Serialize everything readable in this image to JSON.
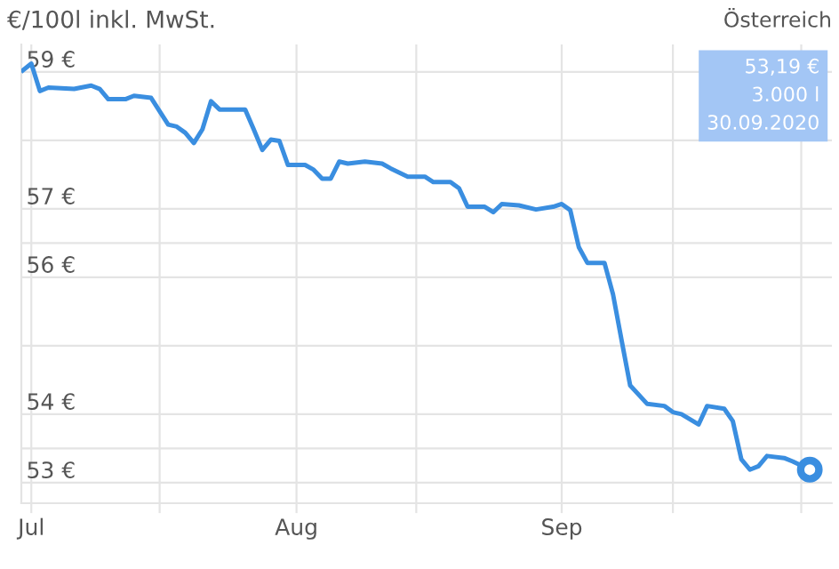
{
  "chart_data": {
    "type": "line",
    "title": "€/100l inkl. MwSt.",
    "subtitle": "Österreich",
    "annotations": [
      "53,19 €\n3.000 l\n30.09.2020"
    ],
    "x": [
      "2020-06-30",
      "2020-07-01",
      "2020-07-02",
      "2020-07-03",
      "2020-07-06",
      "2020-07-08",
      "2020-07-09",
      "2020-07-10",
      "2020-07-12",
      "2020-07-13",
      "2020-07-15",
      "2020-07-17",
      "2020-07-18",
      "2020-07-19",
      "2020-07-20",
      "2020-07-21",
      "2020-07-22",
      "2020-07-23",
      "2020-07-26",
      "2020-07-27",
      "2020-07-28",
      "2020-07-29",
      "2020-07-30",
      "2020-07-31",
      "2020-08-02",
      "2020-08-03",
      "2020-08-04",
      "2020-08-05",
      "2020-08-06",
      "2020-08-07",
      "2020-08-09",
      "2020-08-11",
      "2020-08-12",
      "2020-08-14",
      "2020-08-16",
      "2020-08-17",
      "2020-08-19",
      "2020-08-20",
      "2020-08-21",
      "2020-08-23",
      "2020-08-24",
      "2020-08-25",
      "2020-08-27",
      "2020-08-29",
      "2020-08-31",
      "2020-09-01",
      "2020-09-02",
      "2020-09-03",
      "2020-09-04",
      "2020-09-06",
      "2020-09-07",
      "2020-09-08",
      "2020-09-09",
      "2020-09-11",
      "2020-09-13",
      "2020-09-14",
      "2020-09-15",
      "2020-09-17",
      "2020-09-18",
      "2020-09-20",
      "2020-09-21",
      "2020-09-22",
      "2020-09-23",
      "2020-09-24",
      "2020-09-25",
      "2020-09-27",
      "2020-09-28",
      "2020-09-30"
    ],
    "series": [
      {
        "color": "#3a8ee0",
        "values": [
          59.02,
          59.12,
          58.72,
          58.77,
          58.75,
          58.8,
          58.75,
          58.6,
          58.6,
          58.65,
          58.62,
          58.23,
          58.2,
          58.11,
          57.96,
          58.16,
          58.57,
          58.45,
          58.45,
          58.16,
          57.86,
          58.01,
          57.99,
          57.64,
          57.64,
          57.57,
          57.44,
          57.44,
          57.69,
          57.66,
          57.69,
          57.66,
          57.59,
          57.47,
          57.47,
          57.39,
          57.39,
          57.3,
          57.03,
          57.03,
          56.95,
          57.07,
          57.05,
          56.99,
          57.03,
          57.07,
          56.98,
          56.44,
          56.21,
          56.21,
          55.75,
          55.08,
          54.42,
          54.15,
          54.12,
          54.03,
          54.0,
          53.85,
          54.12,
          54.08,
          53.9,
          53.34,
          53.19,
          53.24,
          53.39,
          53.36,
          53.31,
          53.19
        ]
      },
      {
        "type": "scatter",
        "color": "#3a8ee0",
        "marker": "circle",
        "x": [
          "2020-09-30"
        ],
        "values": [
          53.19
        ]
      }
    ],
    "xlim": [
      "2020-06-29T20:00",
      "2020-10-02T14:00"
    ],
    "xticks": [
      {
        "value": "2020-07-01",
        "label": "Jul"
      },
      {
        "value": "2020-07-16",
        "label": null
      },
      {
        "value": "2020-08-01",
        "label": "Aug"
      },
      {
        "value": "2020-08-15",
        "label": null
      },
      {
        "value": "2020-09-01",
        "label": "Sep"
      },
      {
        "value": "2020-09-14",
        "label": null
      },
      {
        "value": "2020-09-29",
        "label": null
      }
    ],
    "ylim": [
      52.7,
      59.4
    ],
    "yticks": [
      {
        "value": 53,
        "label": "53 €"
      },
      {
        "value": 53.5,
        "label": null
      },
      {
        "value": 54,
        "label": "54 €"
      },
      {
        "value": 55,
        "label": null
      },
      {
        "value": 56,
        "label": "56 €"
      },
      {
        "value": 56.5,
        "label": null
      },
      {
        "value": 57,
        "label": "57 €"
      },
      {
        "value": 58,
        "label": null
      },
      {
        "value": 59,
        "label": "59 €"
      }
    ],
    "grid": true,
    "marker": "none",
    "line_style": "solid"
  }
}
